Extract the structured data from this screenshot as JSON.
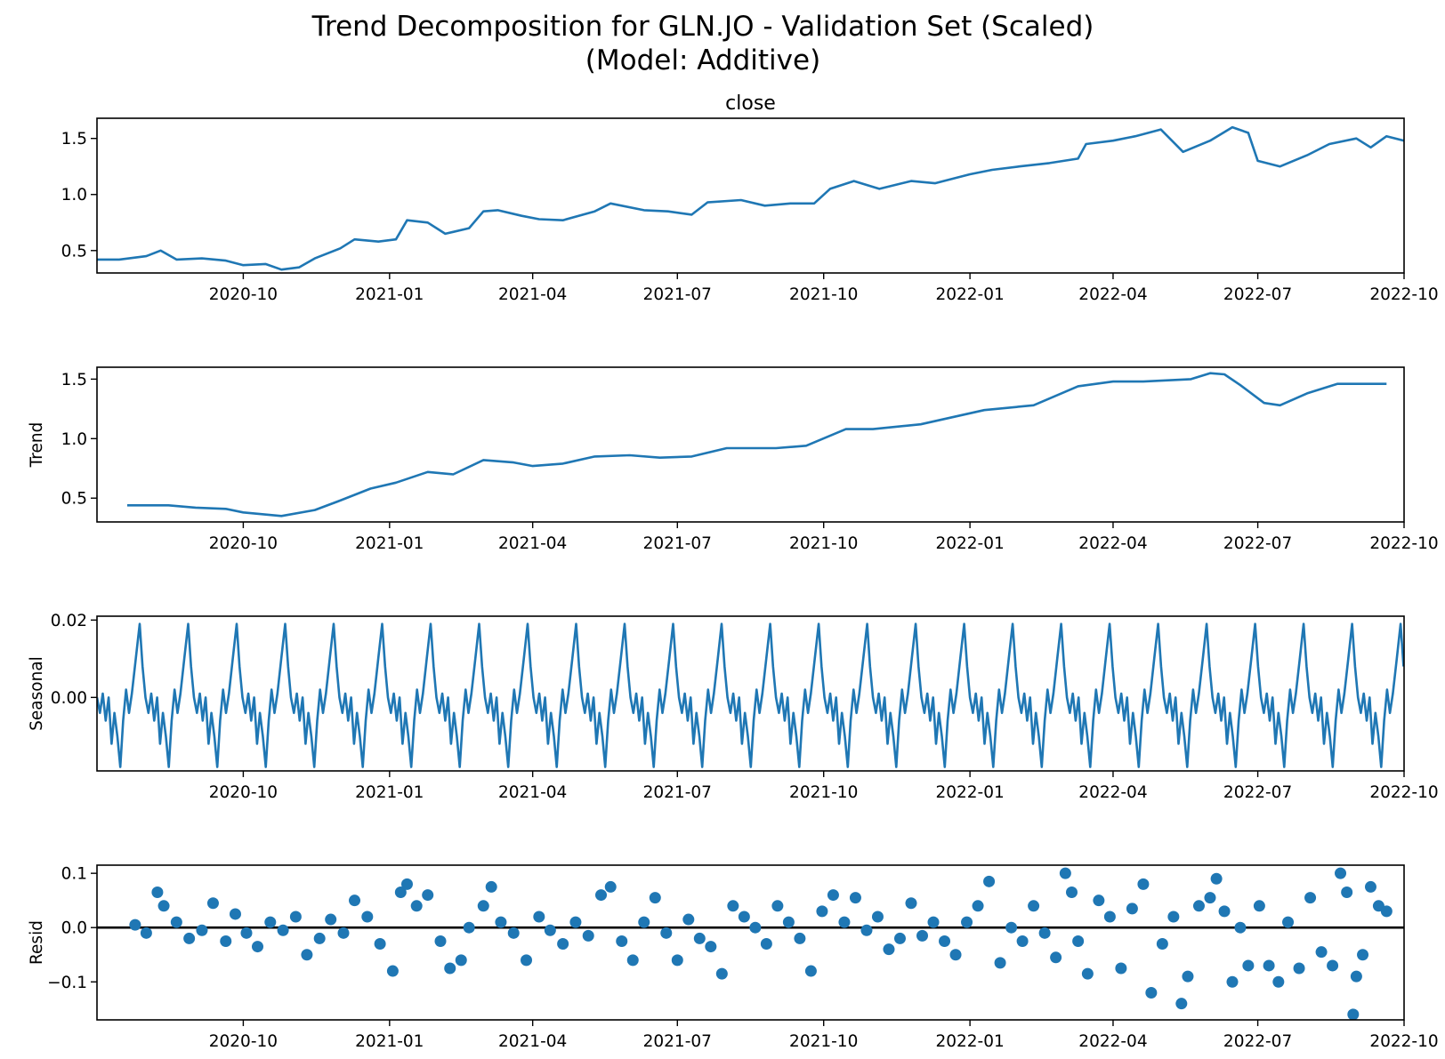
{
  "figure": {
    "title_line1": "Trend Decomposition for GLN.JO - Validation Set (Scaled)",
    "title_line2": "(Model: Additive)",
    "line_color": "#1f77b4",
    "zero_line_color": "#000000"
  },
  "x_axis": {
    "type": "date",
    "start": "2020-07-01",
    "end": "2022-10-01",
    "tick_labels": [
      "2020-10",
      "2021-01",
      "2021-04",
      "2021-07",
      "2021-10",
      "2022-01",
      "2022-04",
      "2022-07",
      "2022-10"
    ]
  },
  "chart_data": [
    {
      "type": "line",
      "title": "close",
      "ylabel": "",
      "ylim": [
        0.3,
        1.68
      ],
      "yticks": [
        "0.5",
        "1.0",
        "1.5"
      ],
      "series": [
        {
          "x_range": [
            "2020-07-01",
            "2022-10-01"
          ],
          "points": [
            [
              "2020-07-01",
              0.42
            ],
            [
              "2020-07-15",
              0.42
            ],
            [
              "2020-08-01",
              0.45
            ],
            [
              "2020-08-10",
              0.5
            ],
            [
              "2020-08-20",
              0.42
            ],
            [
              "2020-09-05",
              0.43
            ],
            [
              "2020-09-20",
              0.41
            ],
            [
              "2020-10-01",
              0.37
            ],
            [
              "2020-10-15",
              0.38
            ],
            [
              "2020-10-25",
              0.33
            ],
            [
              "2020-11-05",
              0.35
            ],
            [
              "2020-11-15",
              0.43
            ],
            [
              "2020-12-01",
              0.52
            ],
            [
              "2020-12-10",
              0.6
            ],
            [
              "2020-12-25",
              0.58
            ],
            [
              "2021-01-05",
              0.6
            ],
            [
              "2021-01-12",
              0.77
            ],
            [
              "2021-01-25",
              0.75
            ],
            [
              "2021-02-05",
              0.65
            ],
            [
              "2021-02-20",
              0.7
            ],
            [
              "2021-03-01",
              0.85
            ],
            [
              "2021-03-10",
              0.86
            ],
            [
              "2021-03-25",
              0.81
            ],
            [
              "2021-04-05",
              0.78
            ],
            [
              "2021-04-20",
              0.77
            ],
            [
              "2021-05-10",
              0.85
            ],
            [
              "2021-05-20",
              0.92
            ],
            [
              "2021-06-10",
              0.86
            ],
            [
              "2021-06-25",
              0.85
            ],
            [
              "2021-07-10",
              0.82
            ],
            [
              "2021-07-20",
              0.93
            ],
            [
              "2021-08-10",
              0.95
            ],
            [
              "2021-08-25",
              0.9
            ],
            [
              "2021-09-10",
              0.92
            ],
            [
              "2021-09-25",
              0.92
            ],
            [
              "2021-10-05",
              1.05
            ],
            [
              "2021-10-20",
              1.12
            ],
            [
              "2021-11-05",
              1.05
            ],
            [
              "2021-11-25",
              1.12
            ],
            [
              "2021-12-10",
              1.1
            ],
            [
              "2022-01-01",
              1.18
            ],
            [
              "2022-01-15",
              1.22
            ],
            [
              "2022-02-01",
              1.25
            ],
            [
              "2022-02-20",
              1.28
            ],
            [
              "2022-03-10",
              1.32
            ],
            [
              "2022-03-15",
              1.45
            ],
            [
              "2022-04-01",
              1.48
            ],
            [
              "2022-04-15",
              1.52
            ],
            [
              "2022-05-01",
              1.58
            ],
            [
              "2022-05-15",
              1.38
            ],
            [
              "2022-06-01",
              1.48
            ],
            [
              "2022-06-15",
              1.6
            ],
            [
              "2022-06-25",
              1.55
            ],
            [
              "2022-07-01",
              1.3
            ],
            [
              "2022-07-15",
              1.25
            ],
            [
              "2022-08-01",
              1.35
            ],
            [
              "2022-08-15",
              1.45
            ],
            [
              "2022-09-01",
              1.5
            ],
            [
              "2022-09-10",
              1.42
            ],
            [
              "2022-09-20",
              1.52
            ],
            [
              "2022-10-01",
              1.48
            ]
          ]
        }
      ]
    },
    {
      "type": "line",
      "title": "",
      "ylabel": "Trend",
      "ylim": [
        0.3,
        1.6
      ],
      "yticks": [
        "0.5",
        "1.0",
        "1.5"
      ],
      "series": [
        {
          "points": [
            [
              "2020-07-20",
              0.44
            ],
            [
              "2020-08-15",
              0.44
            ],
            [
              "2020-09-01",
              0.42
            ],
            [
              "2020-09-20",
              0.41
            ],
            [
              "2020-10-01",
              0.38
            ],
            [
              "2020-10-25",
              0.35
            ],
            [
              "2020-11-15",
              0.4
            ],
            [
              "2020-12-01",
              0.48
            ],
            [
              "2020-12-20",
              0.58
            ],
            [
              "2021-01-05",
              0.63
            ],
            [
              "2021-01-25",
              0.72
            ],
            [
              "2021-02-10",
              0.7
            ],
            [
              "2021-03-01",
              0.82
            ],
            [
              "2021-03-20",
              0.8
            ],
            [
              "2021-04-01",
              0.77
            ],
            [
              "2021-04-20",
              0.79
            ],
            [
              "2021-05-10",
              0.85
            ],
            [
              "2021-06-01",
              0.86
            ],
            [
              "2021-06-20",
              0.84
            ],
            [
              "2021-07-10",
              0.85
            ],
            [
              "2021-08-01",
              0.92
            ],
            [
              "2021-09-01",
              0.92
            ],
            [
              "2021-09-20",
              0.94
            ],
            [
              "2021-10-15",
              1.08
            ],
            [
              "2021-11-01",
              1.08
            ],
            [
              "2021-12-01",
              1.12
            ],
            [
              "2022-01-10",
              1.24
            ],
            [
              "2022-02-10",
              1.28
            ],
            [
              "2022-03-10",
              1.44
            ],
            [
              "2022-04-01",
              1.48
            ],
            [
              "2022-04-20",
              1.48
            ],
            [
              "2022-05-20",
              1.5
            ],
            [
              "2022-06-01",
              1.55
            ],
            [
              "2022-06-10",
              1.54
            ],
            [
              "2022-06-20",
              1.45
            ],
            [
              "2022-07-05",
              1.3
            ],
            [
              "2022-07-15",
              1.28
            ],
            [
              "2022-08-01",
              1.38
            ],
            [
              "2022-08-20",
              1.46
            ],
            [
              "2022-09-10",
              1.46
            ],
            [
              "2022-09-20",
              1.46
            ]
          ]
        }
      ]
    },
    {
      "type": "line",
      "title": "",
      "ylabel": "Seasonal",
      "ylim": [
        -0.019,
        0.021
      ],
      "yticks": [
        "0.00",
        "0.02"
      ],
      "series": [
        {
          "period_days": 30.5,
          "x_range": [
            "2020-07-01",
            "2022-10-01"
          ],
          "cycle_shape": [
            [
              0.0,
              0.0
            ],
            [
              0.06,
              -0.004
            ],
            [
              0.12,
              0.001
            ],
            [
              0.18,
              -0.006
            ],
            [
              0.24,
              0.0
            ],
            [
              0.3,
              -0.012
            ],
            [
              0.36,
              -0.004
            ],
            [
              0.42,
              -0.01
            ],
            [
              0.48,
              -0.018
            ],
            [
              0.54,
              -0.006
            ],
            [
              0.6,
              0.002
            ],
            [
              0.66,
              -0.004
            ],
            [
              0.72,
              0.001
            ],
            [
              0.8,
              0.01
            ],
            [
              0.88,
              0.019
            ],
            [
              0.94,
              0.008
            ],
            [
              1.0,
              0.0
            ]
          ]
        }
      ]
    },
    {
      "type": "scatter",
      "title": "",
      "ylabel": "Resid",
      "ylim": [
        -0.17,
        0.115
      ],
      "yticks": [
        "0.1",
        "0.0",
        "−0.1"
      ],
      "zero_line": true,
      "series": [
        {
          "points": [
            [
              "2020-07-25",
              0.005
            ],
            [
              "2020-08-01",
              -0.01
            ],
            [
              "2020-08-08",
              0.065
            ],
            [
              "2020-08-12",
              0.04
            ],
            [
              "2020-08-20",
              0.01
            ],
            [
              "2020-08-28",
              -0.02
            ],
            [
              "2020-09-05",
              -0.005
            ],
            [
              "2020-09-12",
              0.045
            ],
            [
              "2020-09-20",
              -0.025
            ],
            [
              "2020-09-26",
              0.025
            ],
            [
              "2020-10-03",
              -0.01
            ],
            [
              "2020-10-10",
              -0.035
            ],
            [
              "2020-10-18",
              0.01
            ],
            [
              "2020-10-26",
              -0.005
            ],
            [
              "2020-11-03",
              0.02
            ],
            [
              "2020-11-10",
              -0.05
            ],
            [
              "2020-11-18",
              -0.02
            ],
            [
              "2020-11-25",
              0.015
            ],
            [
              "2020-12-03",
              -0.01
            ],
            [
              "2020-12-10",
              0.05
            ],
            [
              "2020-12-18",
              0.02
            ],
            [
              "2020-12-26",
              -0.03
            ],
            [
              "2021-01-03",
              -0.08
            ],
            [
              "2021-01-08",
              0.065
            ],
            [
              "2021-01-12",
              0.08
            ],
            [
              "2021-01-18",
              0.04
            ],
            [
              "2021-01-25",
              0.06
            ],
            [
              "2021-02-02",
              -0.025
            ],
            [
              "2021-02-08",
              -0.075
            ],
            [
              "2021-02-15",
              -0.06
            ],
            [
              "2021-02-20",
              0.0
            ],
            [
              "2021-03-01",
              0.04
            ],
            [
              "2021-03-06",
              0.075
            ],
            [
              "2021-03-12",
              0.01
            ],
            [
              "2021-03-20",
              -0.01
            ],
            [
              "2021-03-28",
              -0.06
            ],
            [
              "2021-04-05",
              0.02
            ],
            [
              "2021-04-12",
              -0.005
            ],
            [
              "2021-04-20",
              -0.03
            ],
            [
              "2021-04-28",
              0.01
            ],
            [
              "2021-05-06",
              -0.015
            ],
            [
              "2021-05-14",
              0.06
            ],
            [
              "2021-05-20",
              0.075
            ],
            [
              "2021-05-27",
              -0.025
            ],
            [
              "2021-06-03",
              -0.06
            ],
            [
              "2021-06-10",
              0.01
            ],
            [
              "2021-06-17",
              0.055
            ],
            [
              "2021-06-24",
              -0.01
            ],
            [
              "2021-07-01",
              -0.06
            ],
            [
              "2021-07-08",
              0.015
            ],
            [
              "2021-07-15",
              -0.02
            ],
            [
              "2021-07-22",
              -0.035
            ],
            [
              "2021-07-29",
              -0.085
            ],
            [
              "2021-08-05",
              0.04
            ],
            [
              "2021-08-12",
              0.02
            ],
            [
              "2021-08-19",
              0.0
            ],
            [
              "2021-08-26",
              -0.03
            ],
            [
              "2021-09-02",
              0.04
            ],
            [
              "2021-09-09",
              0.01
            ],
            [
              "2021-09-16",
              -0.02
            ],
            [
              "2021-09-23",
              -0.08
            ],
            [
              "2021-09-30",
              0.03
            ],
            [
              "2021-10-07",
              0.06
            ],
            [
              "2021-10-14",
              0.01
            ],
            [
              "2021-10-21",
              0.055
            ],
            [
              "2021-10-28",
              -0.005
            ],
            [
              "2021-11-04",
              0.02
            ],
            [
              "2021-11-11",
              -0.04
            ],
            [
              "2021-11-18",
              -0.02
            ],
            [
              "2021-11-25",
              0.045
            ],
            [
              "2021-12-02",
              -0.015
            ],
            [
              "2021-12-09",
              0.01
            ],
            [
              "2021-12-16",
              -0.025
            ],
            [
              "2021-12-23",
              -0.05
            ],
            [
              "2021-12-30",
              0.01
            ],
            [
              "2022-01-06",
              0.04
            ],
            [
              "2022-01-13",
              0.085
            ],
            [
              "2022-01-20",
              -0.065
            ],
            [
              "2022-01-27",
              0.0
            ],
            [
              "2022-02-03",
              -0.025
            ],
            [
              "2022-02-10",
              0.04
            ],
            [
              "2022-02-17",
              -0.01
            ],
            [
              "2022-02-24",
              -0.055
            ],
            [
              "2022-03-02",
              0.1
            ],
            [
              "2022-03-06",
              0.065
            ],
            [
              "2022-03-10",
              -0.025
            ],
            [
              "2022-03-16",
              -0.085
            ],
            [
              "2022-03-23",
              0.05
            ],
            [
              "2022-03-30",
              0.02
            ],
            [
              "2022-04-06",
              -0.075
            ],
            [
              "2022-04-13",
              0.035
            ],
            [
              "2022-04-20",
              0.08
            ],
            [
              "2022-04-25",
              -0.12
            ],
            [
              "2022-05-02",
              -0.03
            ],
            [
              "2022-05-09",
              0.02
            ],
            [
              "2022-05-14",
              -0.14
            ],
            [
              "2022-05-18",
              -0.09
            ],
            [
              "2022-05-25",
              0.04
            ],
            [
              "2022-06-01",
              0.055
            ],
            [
              "2022-06-05",
              0.09
            ],
            [
              "2022-06-10",
              0.03
            ],
            [
              "2022-06-15",
              -0.1
            ],
            [
              "2022-06-20",
              0.0
            ],
            [
              "2022-06-25",
              -0.07
            ],
            [
              "2022-07-02",
              0.04
            ],
            [
              "2022-07-08",
              -0.07
            ],
            [
              "2022-07-14",
              -0.1
            ],
            [
              "2022-07-20",
              0.01
            ],
            [
              "2022-07-27",
              -0.075
            ],
            [
              "2022-08-03",
              0.055
            ],
            [
              "2022-08-10",
              -0.045
            ],
            [
              "2022-08-17",
              -0.07
            ],
            [
              "2022-08-22",
              0.1
            ],
            [
              "2022-08-26",
              0.065
            ],
            [
              "2022-08-30",
              -0.16
            ],
            [
              "2022-09-01",
              -0.09
            ],
            [
              "2022-09-05",
              -0.05
            ],
            [
              "2022-09-10",
              0.075
            ],
            [
              "2022-09-15",
              0.04
            ],
            [
              "2022-09-20",
              0.03
            ]
          ]
        }
      ]
    }
  ]
}
